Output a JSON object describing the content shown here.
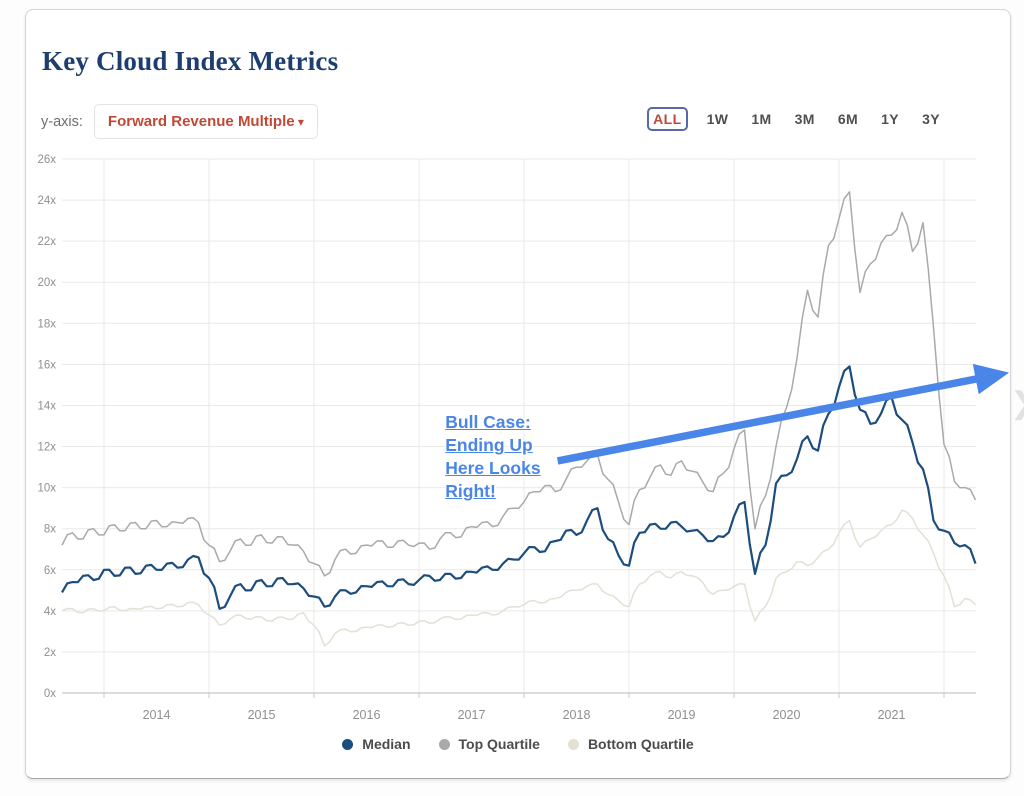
{
  "card": {
    "title": "Key Cloud Index Metrics",
    "y_axis_label": "y-axis:",
    "dropdown": {
      "value": "Forward Revenue Multiple",
      "caret": "▾"
    },
    "range_buttons": [
      "ALL",
      "1W",
      "1M",
      "3M",
      "6M",
      "1Y",
      "3Y"
    ],
    "active_range": "ALL",
    "title_color": "#1d3e6e",
    "accent_red": "#bf4936",
    "accent_border_blue": "#5668ae"
  },
  "legend": [
    {
      "name": "Median",
      "color": "#1d4d7c"
    },
    {
      "name": "Top Quartile",
      "color": "#a9a9a9"
    },
    {
      "name": "Bottom Quartile",
      "color": "#e3e0d4"
    }
  ],
  "chevron_glyph": "❯",
  "chart_data": {
    "type": "line",
    "title": "Key Cloud Index Metrics",
    "ylabel": "Forward Revenue Multiple",
    "ytick_suffix": "x",
    "ylim": [
      0,
      26
    ],
    "ytick_step": 2,
    "xlim": [
      2013.6,
      2022.3
    ],
    "year_gridlines": [
      2014,
      2015,
      2016,
      2017,
      2018,
      2019,
      2020,
      2021,
      2022
    ],
    "year_labels": [
      "2014",
      "2015",
      "2016",
      "2017",
      "2018",
      "2019",
      "2020",
      "2021"
    ],
    "grid": true,
    "legend_position": "bottom",
    "grid_color": "#e9e9e9",
    "axis_text_color": "#8f8f8f",
    "x": [
      2013.6,
      2013.7,
      2013.8,
      2013.9,
      2014.0,
      2014.1,
      2014.2,
      2014.3,
      2014.4,
      2014.5,
      2014.6,
      2014.7,
      2014.8,
      2014.9,
      2015.0,
      2015.1,
      2015.2,
      2015.3,
      2015.4,
      2015.5,
      2015.6,
      2015.7,
      2015.8,
      2015.9,
      2016.0,
      2016.1,
      2016.2,
      2016.3,
      2016.4,
      2016.5,
      2016.6,
      2016.7,
      2016.8,
      2016.9,
      2017.0,
      2017.1,
      2017.2,
      2017.3,
      2017.4,
      2017.5,
      2017.6,
      2017.7,
      2017.8,
      2017.9,
      2018.0,
      2018.1,
      2018.2,
      2018.3,
      2018.4,
      2018.5,
      2018.6,
      2018.7,
      2018.8,
      2018.9,
      2019.0,
      2019.1,
      2019.2,
      2019.3,
      2019.4,
      2019.5,
      2019.6,
      2019.7,
      2019.8,
      2019.9,
      2020.0,
      2020.1,
      2020.2,
      2020.3,
      2020.4,
      2020.5,
      2020.6,
      2020.7,
      2020.8,
      2020.9,
      2021.0,
      2021.1,
      2021.2,
      2021.3,
      2021.4,
      2021.5,
      2021.6,
      2021.7,
      2021.8,
      2021.9,
      2022.0,
      2022.1,
      2022.2,
      2022.3
    ],
    "series": [
      {
        "name": "Median",
        "color": "#1d4d7c",
        "width": 2.2,
        "values": [
          4.9,
          5.4,
          5.7,
          5.5,
          6.0,
          5.7,
          6.1,
          5.8,
          6.2,
          6.0,
          6.3,
          6.1,
          6.5,
          6.6,
          5.6,
          4.1,
          4.7,
          5.3,
          5.0,
          5.5,
          5.2,
          5.6,
          5.3,
          5.1,
          4.7,
          4.2,
          4.7,
          5.0,
          4.9,
          5.2,
          5.4,
          5.2,
          5.5,
          5.3,
          5.5,
          5.7,
          5.5,
          5.8,
          5.6,
          5.9,
          6.1,
          6.0,
          6.3,
          6.5,
          6.8,
          7.1,
          6.9,
          7.4,
          7.9,
          7.7,
          8.4,
          9.0,
          7.5,
          6.7,
          6.2,
          7.8,
          8.2,
          8.0,
          8.3,
          8.1,
          7.9,
          7.7,
          7.4,
          7.6,
          8.6,
          9.3,
          5.8,
          7.2,
          10.2,
          10.6,
          11.4,
          12.5,
          11.8,
          13.6,
          14.9,
          15.9,
          13.8,
          13.1,
          13.6,
          14.4,
          13.3,
          12.2,
          10.9,
          8.4,
          7.9,
          7.3,
          7.2,
          6.3
        ]
      },
      {
        "name": "Top Quartile",
        "color": "#a9a9a9",
        "width": 1.5,
        "values": [
          7.2,
          7.8,
          7.5,
          8.0,
          7.7,
          8.2,
          7.9,
          8.3,
          8.0,
          8.4,
          8.1,
          8.3,
          8.5,
          8.3,
          7.2,
          6.4,
          6.9,
          7.5,
          7.2,
          7.7,
          7.3,
          7.6,
          7.2,
          6.9,
          6.3,
          5.7,
          6.5,
          7.0,
          6.8,
          7.2,
          7.4,
          7.1,
          7.4,
          7.2,
          7.3,
          7.0,
          7.5,
          7.8,
          7.6,
          8.1,
          8.3,
          8.1,
          8.6,
          9.0,
          9.3,
          9.8,
          10.1,
          9.8,
          10.4,
          11.0,
          11.3,
          11.6,
          10.4,
          9.3,
          8.2,
          9.9,
          10.5,
          11.1,
          10.6,
          11.3,
          10.8,
          10.3,
          9.8,
          10.7,
          11.9,
          12.8,
          8.0,
          9.6,
          12.0,
          13.9,
          16.3,
          19.6,
          18.3,
          21.8,
          23.1,
          24.4,
          19.5,
          20.9,
          21.9,
          22.3,
          23.4,
          21.5,
          22.9,
          17.8,
          12.1,
          10.3,
          10.0,
          9.4
        ]
      },
      {
        "name": "Bottom Quartile",
        "color": "#e3e0d4",
        "width": 1.5,
        "values": [
          4.0,
          4.1,
          3.9,
          4.1,
          4.0,
          4.2,
          4.0,
          4.1,
          4.2,
          4.1,
          4.3,
          4.2,
          4.4,
          4.3,
          3.8,
          3.3,
          3.6,
          3.8,
          3.6,
          3.7,
          3.5,
          3.7,
          3.6,
          3.9,
          3.3,
          2.3,
          2.9,
          3.1,
          3.0,
          3.2,
          3.3,
          3.2,
          3.4,
          3.3,
          3.5,
          3.4,
          3.6,
          3.7,
          3.6,
          3.8,
          3.9,
          3.8,
          4.0,
          4.2,
          4.3,
          4.5,
          4.4,
          4.6,
          4.9,
          5.0,
          5.2,
          5.3,
          4.8,
          4.5,
          4.2,
          5.3,
          5.7,
          5.9,
          5.6,
          5.9,
          5.7,
          5.4,
          4.8,
          5.0,
          5.2,
          5.3,
          3.5,
          4.2,
          5.6,
          5.9,
          6.4,
          6.2,
          6.6,
          7.0,
          7.8,
          8.4,
          7.1,
          7.5,
          7.9,
          8.2,
          8.9,
          8.5,
          7.7,
          6.8,
          5.7,
          4.2,
          4.6,
          4.3
        ]
      }
    ],
    "annotation": {
      "text": "Bull Case: Ending Up Here Looks Right!",
      "lines": [
        "Bull Case:",
        "Ending Up",
        "Here Looks",
        "Right!"
      ],
      "color": "#4a86e8",
      "anchor": [
        2017.25,
        13.72
      ],
      "arrow_from": [
        2018.32,
        11.3
      ],
      "arrow_to": [
        2022.62,
        15.6
      ]
    }
  }
}
